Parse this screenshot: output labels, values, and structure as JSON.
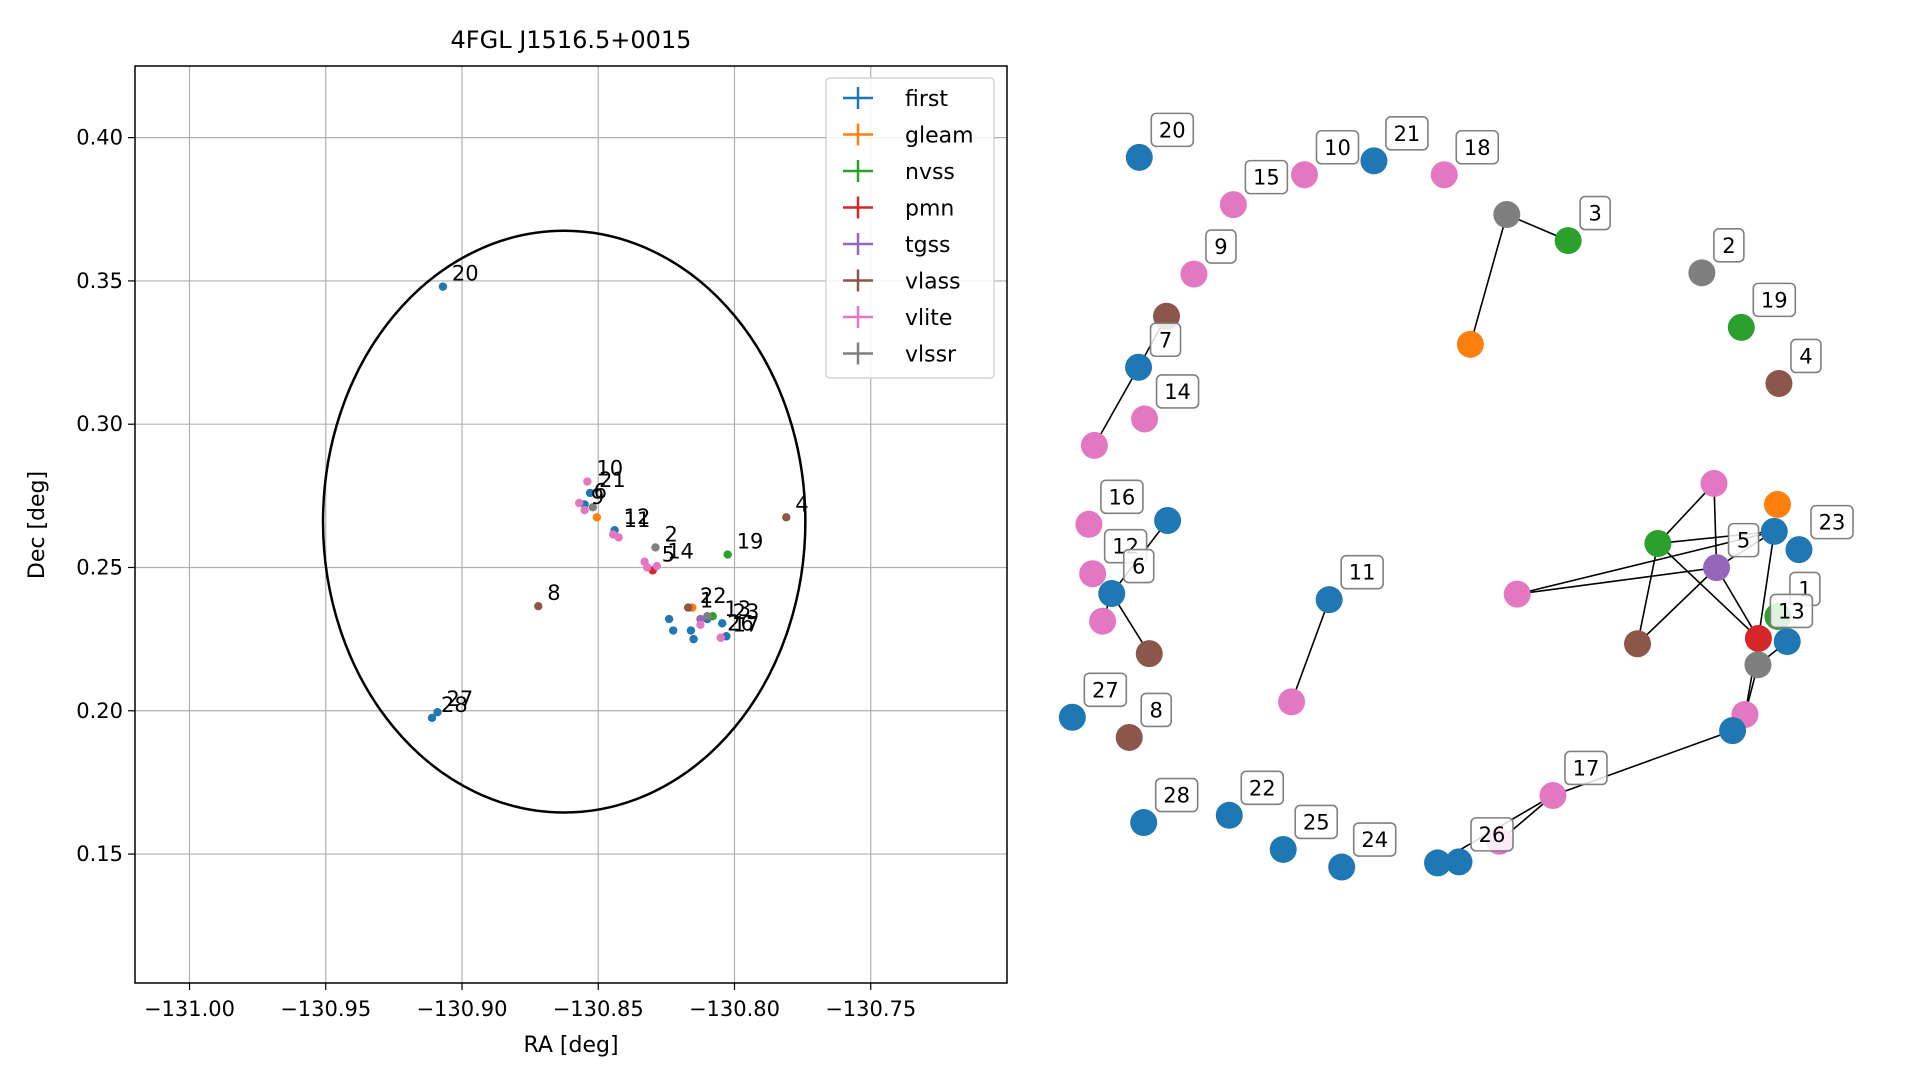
{
  "chart_data": [
    {
      "type": "scatter",
      "title": "4FGL J1516.5+0015",
      "xlabel": "RA [deg]",
      "ylabel": "Dec [deg]",
      "xlim": [
        -131.02,
        -130.7
      ],
      "ylim": [
        0.105,
        0.425
      ],
      "xticks": [
        -131.0,
        -130.95,
        -130.9,
        -130.85,
        -130.8,
        -130.75
      ],
      "xtick_labels": [
        "−131.00",
        "−130.95",
        "−130.90",
        "−130.85",
        "−130.80",
        "−130.75"
      ],
      "yticks": [
        0.15,
        0.2,
        0.25,
        0.3,
        0.35,
        0.4
      ],
      "ytick_labels": [
        "0.15",
        "0.20",
        "0.25",
        "0.30",
        "0.35",
        "0.40"
      ],
      "grid": true,
      "legend_position": "top-right",
      "legend": [
        {
          "name": "first",
          "color": "#1f77b4"
        },
        {
          "name": "gleam",
          "color": "#ff7f0e"
        },
        {
          "name": "nvss",
          "color": "#2ca02c"
        },
        {
          "name": "pmn",
          "color": "#d62728"
        },
        {
          "name": "tgss",
          "color": "#9467bd"
        },
        {
          "name": "vlass",
          "color": "#8c564b"
        },
        {
          "name": "vlite",
          "color": "#e377c2"
        },
        {
          "name": "vlssr",
          "color": "#7f7f7f"
        }
      ],
      "ellipse": {
        "center_x": -130.8625,
        "center_y": 0.266,
        "semi_x": 0.0885,
        "semi_y": 0.1015
      },
      "labeled_points": [
        {
          "label": "1",
          "survey": "first",
          "x": -130.816,
          "y": 0.234
        },
        {
          "label": "2",
          "survey": "vlssr",
          "x": -130.829,
          "y": 0.257
        },
        {
          "label": "4",
          "survey": "vlass",
          "x": -130.781,
          "y": 0.2675
        },
        {
          "label": "5",
          "survey": "tgss",
          "x": -130.83,
          "y": 0.25
        },
        {
          "label": "6",
          "survey": "first",
          "x": -130.855,
          "y": 0.272
        },
        {
          "label": "8",
          "survey": "vlass",
          "x": -130.872,
          "y": 0.2365
        },
        {
          "label": "9",
          "survey": "vlite",
          "x": -130.856,
          "y": 0.27
        },
        {
          "label": "10",
          "survey": "vlite",
          "x": -130.854,
          "y": 0.28
        },
        {
          "label": "11",
          "survey": "first",
          "x": -130.844,
          "y": 0.262
        },
        {
          "label": "12",
          "survey": "first",
          "x": -130.844,
          "y": 0.263
        },
        {
          "label": "13",
          "survey": "pmn",
          "x": -130.807,
          "y": 0.231
        },
        {
          "label": "14",
          "survey": "vlite",
          "x": -130.828,
          "y": 0.251
        },
        {
          "label": "17",
          "survey": "vlite",
          "x": -130.804,
          "y": 0.2255
        },
        {
          "label": "19",
          "survey": "nvss",
          "x": -130.8025,
          "y": 0.2545
        },
        {
          "label": "20",
          "survey": "first",
          "x": -130.907,
          "y": 0.348
        },
        {
          "label": "21",
          "survey": "first",
          "x": -130.853,
          "y": 0.276
        },
        {
          "label": "22",
          "survey": "first",
          "x": -130.816,
          "y": 0.2355
        },
        {
          "label": "23",
          "survey": "first",
          "x": -130.804,
          "y": 0.23
        },
        {
          "label": "26",
          "survey": "first",
          "x": -130.806,
          "y": 0.226
        },
        {
          "label": "27",
          "survey": "first",
          "x": -130.909,
          "y": 0.1995
        },
        {
          "label": "28",
          "survey": "first",
          "x": -130.911,
          "y": 0.1975
        }
      ],
      "points": [
        {
          "survey": "first",
          "x": -130.853,
          "y": 0.276
        },
        {
          "survey": "first",
          "x": -130.855,
          "y": 0.272
        },
        {
          "survey": "first",
          "x": -130.844,
          "y": 0.263
        },
        {
          "survey": "first",
          "x": -130.824,
          "y": 0.232
        },
        {
          "survey": "first",
          "x": -130.8225,
          "y": 0.228
        },
        {
          "survey": "first",
          "x": -130.816,
          "y": 0.228
        },
        {
          "survey": "first",
          "x": -130.815,
          "y": 0.225
        },
        {
          "survey": "first",
          "x": -130.81,
          "y": 0.232
        },
        {
          "survey": "first",
          "x": -130.8045,
          "y": 0.2305
        },
        {
          "survey": "first",
          "x": -130.803,
          "y": 0.226
        },
        {
          "survey": "first",
          "x": -130.805,
          "y": 0.2255
        },
        {
          "survey": "first",
          "x": -130.907,
          "y": 0.348
        },
        {
          "survey": "first",
          "x": -130.909,
          "y": 0.1995
        },
        {
          "survey": "first",
          "x": -130.911,
          "y": 0.1975
        },
        {
          "survey": "gleam",
          "x": -130.8505,
          "y": 0.2675
        },
        {
          "survey": "gleam",
          "x": -130.8155,
          "y": 0.236
        },
        {
          "survey": "nvss",
          "x": -130.8025,
          "y": 0.2545
        },
        {
          "survey": "nvss",
          "x": -130.808,
          "y": 0.233
        },
        {
          "survey": "pmn",
          "x": -130.83,
          "y": 0.249
        },
        {
          "survey": "tgss",
          "x": -130.8125,
          "y": 0.232
        },
        {
          "survey": "vlass",
          "x": -130.781,
          "y": 0.2675
        },
        {
          "survey": "vlass",
          "x": -130.872,
          "y": 0.2365
        },
        {
          "survey": "vlass",
          "x": -130.817,
          "y": 0.236
        },
        {
          "survey": "vlite",
          "x": -130.854,
          "y": 0.28
        },
        {
          "survey": "vlite",
          "x": -130.857,
          "y": 0.2725
        },
        {
          "survey": "vlite",
          "x": -130.855,
          "y": 0.27
        },
        {
          "survey": "vlite",
          "x": -130.8445,
          "y": 0.2615
        },
        {
          "survey": "vlite",
          "x": -130.8425,
          "y": 0.2605
        },
        {
          "survey": "vlite",
          "x": -130.833,
          "y": 0.252
        },
        {
          "survey": "vlite",
          "x": -130.832,
          "y": 0.25
        },
        {
          "survey": "vlite",
          "x": -130.8285,
          "y": 0.2505
        },
        {
          "survey": "vlite",
          "x": -130.8125,
          "y": 0.23
        },
        {
          "survey": "vlite",
          "x": -130.805,
          "y": 0.2255
        },
        {
          "survey": "vlssr",
          "x": -130.852,
          "y": 0.271
        },
        {
          "survey": "vlssr",
          "x": -130.829,
          "y": 0.257
        },
        {
          "survey": "vlssr",
          "x": -130.81,
          "y": 0.233
        }
      ]
    },
    {
      "type": "network",
      "nodes": [
        {
          "id": "n20",
          "label": "20",
          "survey": "first",
          "x": 0.0862,
          "y": 0.0625
        },
        {
          "id": "n10",
          "label": "10",
          "survey": "vlite",
          "x": 0.3113,
          "y": 0.0941
        },
        {
          "id": "n21",
          "label": "21",
          "survey": "first",
          "x": 0.4059,
          "y": 0.0688
        },
        {
          "id": "n18",
          "label": "18",
          "survey": "vlite",
          "x": 0.5017,
          "y": 0.0941
        },
        {
          "id": "n15",
          "label": "15",
          "survey": "vlite",
          "x": 0.2144,
          "y": 0.1484
        },
        {
          "id": "g3",
          "label": "",
          "survey": "vlssr",
          "x": 0.5869,
          "y": 0.1664
        },
        {
          "id": "n3",
          "label": "3",
          "survey": "nvss",
          "x": 0.6705,
          "y": 0.2138
        },
        {
          "id": "n2",
          "label": "2",
          "survey": "vlssr",
          "x": 0.8527,
          "y": 0.2724
        },
        {
          "id": "n9",
          "label": "9",
          "survey": "vlite",
          "x": 0.1607,
          "y": 0.2747
        },
        {
          "id": "o3",
          "label": "",
          "survey": "gleam",
          "x": 0.5373,
          "y": 0.4024
        },
        {
          "id": "n19",
          "label": "19",
          "survey": "nvss",
          "x": 0.9064,
          "y": 0.3716
        },
        {
          "id": "v7",
          "label": "",
          "survey": "vlass",
          "x": 0.1233,
          "y": 0.3514
        },
        {
          "id": "n7",
          "label": "7",
          "survey": "first",
          "x": 0.0852,
          "y": 0.4441
        },
        {
          "id": "n4",
          "label": "4",
          "survey": "vlass",
          "x": 0.9577,
          "y": 0.4736
        },
        {
          "id": "n14",
          "label": "14",
          "survey": "vlite",
          "x": 0.0934,
          "y": 0.5381
        },
        {
          "id": "p7",
          "label": "",
          "survey": "vlite",
          "x": 0.0251,
          "y": 0.5862
        },
        {
          "id": "n16",
          "label": "16",
          "survey": "vlite",
          "x": 0.0176,
          "y": 0.7296
        },
        {
          "id": "b12",
          "label": "",
          "survey": "first",
          "x": 0.1248,
          "y": 0.7227
        },
        {
          "id": "pt",
          "label": "",
          "survey": "vlite",
          "x": 0.8692,
          "y": 0.6553
        },
        {
          "id": "ot",
          "label": "",
          "survey": "gleam",
          "x": 0.9557,
          "y": 0.6935
        },
        {
          "id": "bt",
          "label": "",
          "survey": "first",
          "x": 0.9513,
          "y": 0.7425
        },
        {
          "id": "n23",
          "label": "23",
          "survey": "first",
          "x": 0.985,
          "y": 0.7757
        },
        {
          "id": "gn",
          "label": "",
          "survey": "nvss",
          "x": 0.7928,
          "y": 0.7645
        },
        {
          "id": "n5",
          "label": "5",
          "survey": "tgss",
          "x": 0.8727,
          "y": 0.8084
        },
        {
          "id": "n1",
          "label": "1",
          "survey": "nvss",
          "x": 0.9563,
          "y": 0.8971
        },
        {
          "id": "n12",
          "label": "12",
          "survey": "vlite",
          "x": 0.0227,
          "y": 0.8195
        },
        {
          "id": "n6",
          "label": "6",
          "survey": "first",
          "x": 0.0487,
          "y": 0.8555
        },
        {
          "id": "n11",
          "label": "11",
          "survey": "first",
          "x": 0.3449,
          "y": 0.8667
        },
        {
          "id": "pl",
          "label": "",
          "survey": "vlite",
          "x": 0.6011,
          "y": 0.8566
        },
        {
          "id": "p6",
          "label": "",
          "survey": "vlite",
          "x": 0.0362,
          "y": 0.9058
        },
        {
          "id": "v6",
          "label": "",
          "survey": "vlass",
          "x": 0.0998,
          "y": 0.9648
        },
        {
          "id": "vm",
          "label": "",
          "survey": "vlass",
          "x": 0.765,
          "y": 0.9468
        },
        {
          "id": "n13",
          "label": "13",
          "survey": "pmn",
          "x": 0.9297,
          "y": 0.9372
        },
        {
          "id": "bh",
          "label": "",
          "survey": "first",
          "x": 0.969,
          "y": 0.9428
        },
        {
          "id": "gh",
          "label": "",
          "survey": "vlssr",
          "x": 0.9291,
          "y": 0.9851
        },
        {
          "id": "p11",
          "label": "",
          "survey": "vlite",
          "x": 0.2937,
          "y": 1.0524
        },
        {
          "id": "pb",
          "label": "",
          "survey": "vlite",
          "x": 0.9114,
          "y": 1.0754
        },
        {
          "id": "n27",
          "label": "27",
          "survey": "first",
          "x": -0.005,
          "y": 1.0805
        },
        {
          "id": "b17",
          "label": "",
          "survey": "first",
          "x": 0.8945,
          "y": 1.1048
        },
        {
          "id": "n8",
          "label": "8",
          "survey": "vlass",
          "x": 0.0725,
          "y": 1.1172
        },
        {
          "id": "n17",
          "label": "17",
          "survey": "vlite",
          "x": 0.6498,
          "y": 1.2227
        },
        {
          "id": "n28",
          "label": "28",
          "survey": "first",
          "x": 0.0922,
          "y": 1.2719
        },
        {
          "id": "n22",
          "label": "22",
          "survey": "first",
          "x": 0.2088,
          "y": 1.2587
        },
        {
          "id": "p26",
          "label": "",
          "survey": "vlite",
          "x": 0.5767,
          "y": 1.3059
        },
        {
          "id": "n25",
          "label": "25",
          "survey": "first",
          "x": 0.2823,
          "y": 1.3208
        },
        {
          "id": "n26",
          "label": "26",
          "survey": "first",
          "x": 0.5218,
          "y": 1.3434
        },
        {
          "id": "b26",
          "label": "",
          "survey": "first",
          "x": 0.4926,
          "y": 1.3453
        },
        {
          "id": "n24",
          "label": "24",
          "survey": "first",
          "x": 0.362,
          "y": 1.3528
        }
      ],
      "edges": [
        [
          "g3",
          "n3"
        ],
        [
          "g3",
          "o3"
        ],
        [
          "v7",
          "n7"
        ],
        [
          "n7",
          "p7"
        ],
        [
          "b12",
          "n6"
        ],
        [
          "n6",
          "p6"
        ],
        [
          "n6",
          "v6"
        ],
        [
          "n11",
          "p11"
        ],
        [
          "pt",
          "gn"
        ],
        [
          "pt",
          "n5"
        ],
        [
          "gn",
          "bt"
        ],
        [
          "gn",
          "vm"
        ],
        [
          "gn",
          "n13"
        ],
        [
          "n5",
          "bt"
        ],
        [
          "n5",
          "pl"
        ],
        [
          "n5",
          "vm"
        ],
        [
          "n5",
          "n13"
        ],
        [
          "pl",
          "bt"
        ],
        [
          "bt",
          "n13"
        ],
        [
          "n13",
          "pb"
        ],
        [
          "bh",
          "gh"
        ],
        [
          "gh",
          "pb"
        ],
        [
          "b17",
          "n17"
        ],
        [
          "n17",
          "p26"
        ],
        [
          "n17",
          "b26"
        ]
      ]
    }
  ]
}
